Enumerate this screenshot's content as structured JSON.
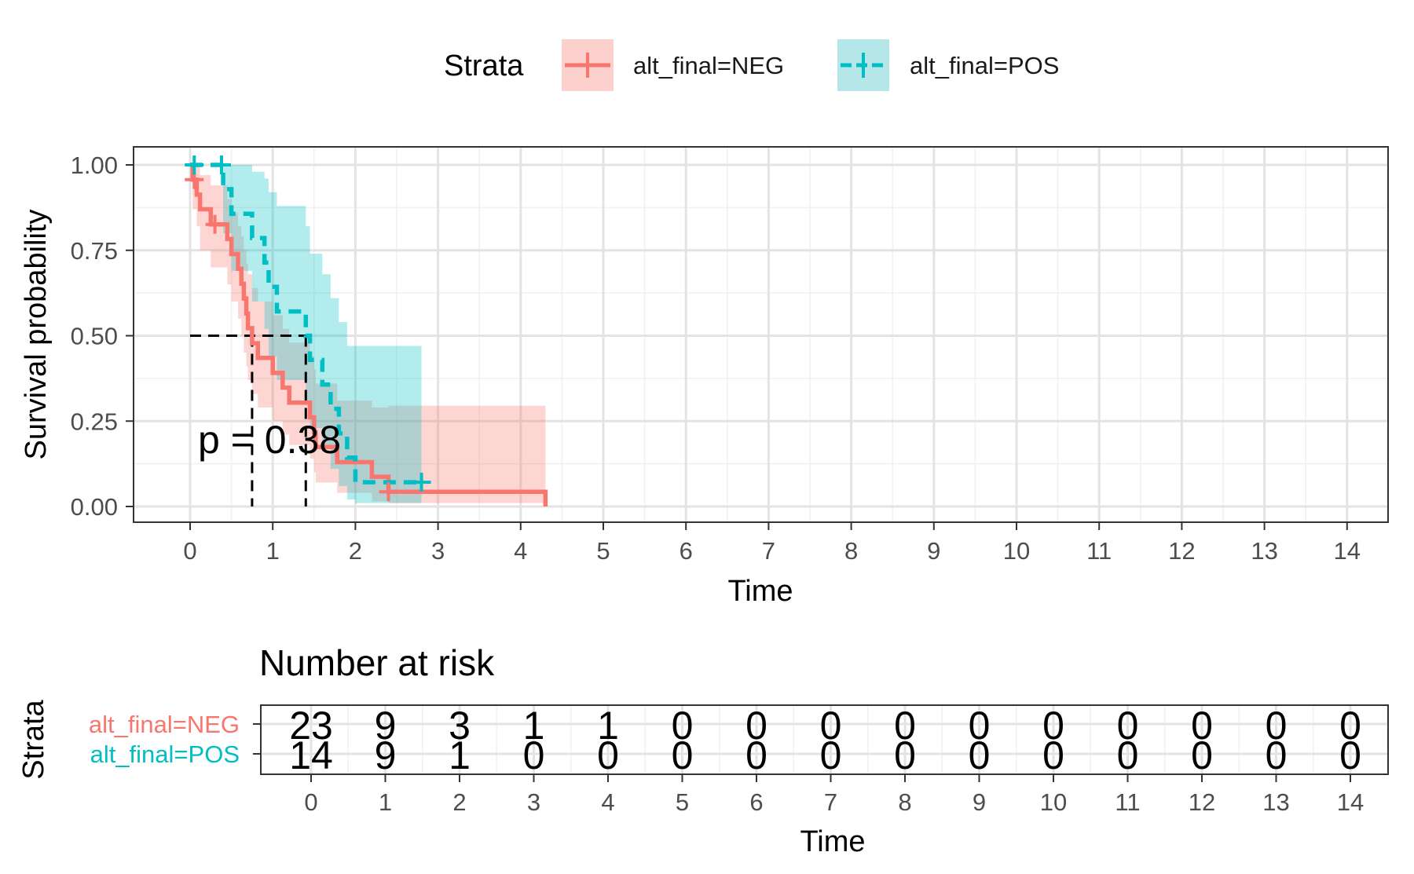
{
  "legend": {
    "title": "Strata",
    "items": [
      {
        "label": "alt_final=NEG",
        "color": "#F8766D",
        "fill": "#FBD0CD"
      },
      {
        "label": "alt_final=POS",
        "color": "#00BFC4",
        "fill": "#B5E6E8"
      }
    ]
  },
  "annotation": "p = 0.38",
  "chart_data": [
    {
      "type": "line",
      "subtype": "kaplan-meier step with confidence bands",
      "xlabel": "Time",
      "ylabel": "Survival probability",
      "xlim": [
        0,
        14
      ],
      "ylim": [
        0,
        1
      ],
      "x_ticks": [
        "0",
        "1",
        "2",
        "3",
        "4",
        "5",
        "6",
        "7",
        "8",
        "9",
        "10",
        "11",
        "12",
        "13",
        "14"
      ],
      "y_ticks": [
        "0.00",
        "0.25",
        "0.50",
        "0.75",
        "1.00"
      ],
      "grid": true,
      "legend_position": "top",
      "median_survival": [
        0.75,
        1.4
      ],
      "series": [
        {
          "name": "alt_final=NEG",
          "color": "#F8766D",
          "linetype": "solid",
          "steps": [
            [
              0,
              1.0
            ],
            [
              0.03,
              0.957
            ],
            [
              0.08,
              0.913
            ],
            [
              0.12,
              0.87
            ],
            [
              0.25,
              0.826
            ],
            [
              0.45,
              0.783
            ],
            [
              0.5,
              0.739
            ],
            [
              0.58,
              0.696
            ],
            [
              0.62,
              0.652
            ],
            [
              0.65,
              0.609
            ],
            [
              0.68,
              0.565
            ],
            [
              0.7,
              0.522
            ],
            [
              0.75,
              0.478
            ],
            [
              0.82,
              0.435
            ],
            [
              1.0,
              0.391
            ],
            [
              1.12,
              0.348
            ],
            [
              1.2,
              0.304
            ],
            [
              1.45,
              0.261
            ],
            [
              1.5,
              0.217
            ],
            [
              1.52,
              0.174
            ],
            [
              1.78,
              0.13
            ],
            [
              2.2,
              0.087
            ],
            [
              2.4,
              0.043
            ],
            [
              4.3,
              0.0
            ]
          ],
          "censored": [
            [
              0.05,
              0.957
            ],
            [
              0.3,
              0.826
            ],
            [
              2.4,
              0.043
            ]
          ],
          "ci_upper": [
            [
              0,
              1.0
            ],
            [
              0.03,
              1.0
            ],
            [
              0.12,
              0.97
            ],
            [
              0.25,
              0.94
            ],
            [
              0.45,
              0.9
            ],
            [
              0.5,
              0.86
            ],
            [
              0.58,
              0.82
            ],
            [
              0.62,
              0.79
            ],
            [
              0.65,
              0.75
            ],
            [
              0.68,
              0.71
            ],
            [
              0.7,
              0.68
            ],
            [
              0.75,
              0.64
            ],
            [
              0.82,
              0.6
            ],
            [
              1.0,
              0.56
            ],
            [
              1.12,
              0.52
            ],
            [
              1.2,
              0.48
            ],
            [
              1.45,
              0.44
            ],
            [
              1.5,
              0.4
            ],
            [
              1.52,
              0.36
            ],
            [
              1.78,
              0.31
            ],
            [
              2.2,
              0.29
            ],
            [
              2.4,
              0.295
            ],
            [
              4.3,
              0.295
            ]
          ],
          "ci_lower": [
            [
              0,
              1.0
            ],
            [
              0.03,
              0.87
            ],
            [
              0.08,
              0.82
            ],
            [
              0.12,
              0.75
            ],
            [
              0.25,
              0.7
            ],
            [
              0.45,
              0.65
            ],
            [
              0.5,
              0.6
            ],
            [
              0.58,
              0.55
            ],
            [
              0.62,
              0.5
            ],
            [
              0.65,
              0.45
            ],
            [
              0.68,
              0.41
            ],
            [
              0.7,
              0.37
            ],
            [
              0.75,
              0.33
            ],
            [
              0.82,
              0.29
            ],
            [
              1.0,
              0.25
            ],
            [
              1.12,
              0.21
            ],
            [
              1.2,
              0.18
            ],
            [
              1.45,
              0.14
            ],
            [
              1.5,
              0.1
            ],
            [
              1.52,
              0.07
            ],
            [
              1.78,
              0.04
            ],
            [
              2.2,
              0.015
            ],
            [
              2.4,
              0.01
            ],
            [
              4.3,
              0.01
            ]
          ]
        },
        {
          "name": "alt_final=POS",
          "color": "#00BFC4",
          "linetype": "dashed",
          "steps": [
            [
              0,
              1.0
            ],
            [
              0.4,
              0.929
            ],
            [
              0.5,
              0.857
            ],
            [
              0.75,
              0.786
            ],
            [
              0.9,
              0.714
            ],
            [
              0.95,
              0.643
            ],
            [
              1.05,
              0.571
            ],
            [
              1.4,
              0.5
            ],
            [
              1.45,
              0.429
            ],
            [
              1.6,
              0.357
            ],
            [
              1.7,
              0.286
            ],
            [
              1.8,
              0.214
            ],
            [
              1.9,
              0.143
            ],
            [
              2.0,
              0.071
            ],
            [
              2.8,
              0.071
            ]
          ],
          "censored": [
            [
              0.05,
              1.0
            ],
            [
              0.38,
              1.0
            ],
            [
              2.8,
              0.071
            ]
          ],
          "ci_upper": [
            [
              0,
              1.0
            ],
            [
              0.4,
              1.0
            ],
            [
              0.5,
              1.0
            ],
            [
              0.75,
              0.98
            ],
            [
              0.9,
              0.96
            ],
            [
              0.95,
              0.92
            ],
            [
              1.05,
              0.88
            ],
            [
              1.4,
              0.82
            ],
            [
              1.45,
              0.74
            ],
            [
              1.6,
              0.68
            ],
            [
              1.7,
              0.61
            ],
            [
              1.8,
              0.54
            ],
            [
              1.9,
              0.47
            ],
            [
              2.8,
              0.47
            ]
          ],
          "ci_lower": [
            [
              0,
              1.0
            ],
            [
              0.4,
              0.8
            ],
            [
              0.5,
              0.69
            ],
            [
              0.75,
              0.6
            ],
            [
              0.9,
              0.52
            ],
            [
              0.95,
              0.44
            ],
            [
              1.05,
              0.37
            ],
            [
              1.4,
              0.3
            ],
            [
              1.45,
              0.23
            ],
            [
              1.6,
              0.17
            ],
            [
              1.7,
              0.11
            ],
            [
              1.8,
              0.06
            ],
            [
              1.9,
              0.02
            ],
            [
              2.0,
              0.01
            ],
            [
              2.8,
              0.01
            ]
          ]
        }
      ]
    },
    {
      "type": "table",
      "title": "Number at risk",
      "xlabel": "Time",
      "ylabel": "Strata",
      "x_ticks": [
        "0",
        "1",
        "2",
        "3",
        "4",
        "5",
        "6",
        "7",
        "8",
        "9",
        "10",
        "11",
        "12",
        "13",
        "14"
      ],
      "rows": [
        {
          "name": "alt_final=NEG",
          "color": "#F8766D",
          "values": [
            "23",
            "9",
            "3",
            "1",
            "1",
            "0",
            "0",
            "0",
            "0",
            "0",
            "0",
            "0",
            "0",
            "0",
            "0"
          ]
        },
        {
          "name": "alt_final=POS",
          "color": "#00BFC4",
          "values": [
            "14",
            "9",
            "1",
            "0",
            "0",
            "0",
            "0",
            "0",
            "0",
            "0",
            "0",
            "0",
            "0",
            "0",
            "0"
          ]
        }
      ]
    }
  ]
}
